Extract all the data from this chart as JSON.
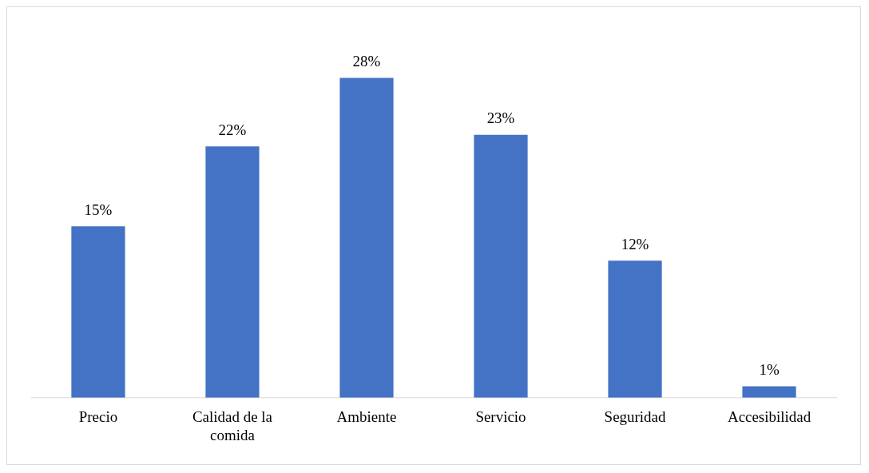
{
  "chart_data": {
    "type": "bar",
    "categories": [
      "Precio",
      "Calidad de la comida",
      "Ambiente",
      "Servicio",
      "Seguridad",
      "Accesibilidad"
    ],
    "values": [
      15,
      22,
      28,
      23,
      12,
      1
    ],
    "value_labels": [
      "15%",
      "22%",
      "28%",
      "23%",
      "12%",
      "1%"
    ],
    "color": "#4472c4",
    "grid": false,
    "legend": false
  }
}
